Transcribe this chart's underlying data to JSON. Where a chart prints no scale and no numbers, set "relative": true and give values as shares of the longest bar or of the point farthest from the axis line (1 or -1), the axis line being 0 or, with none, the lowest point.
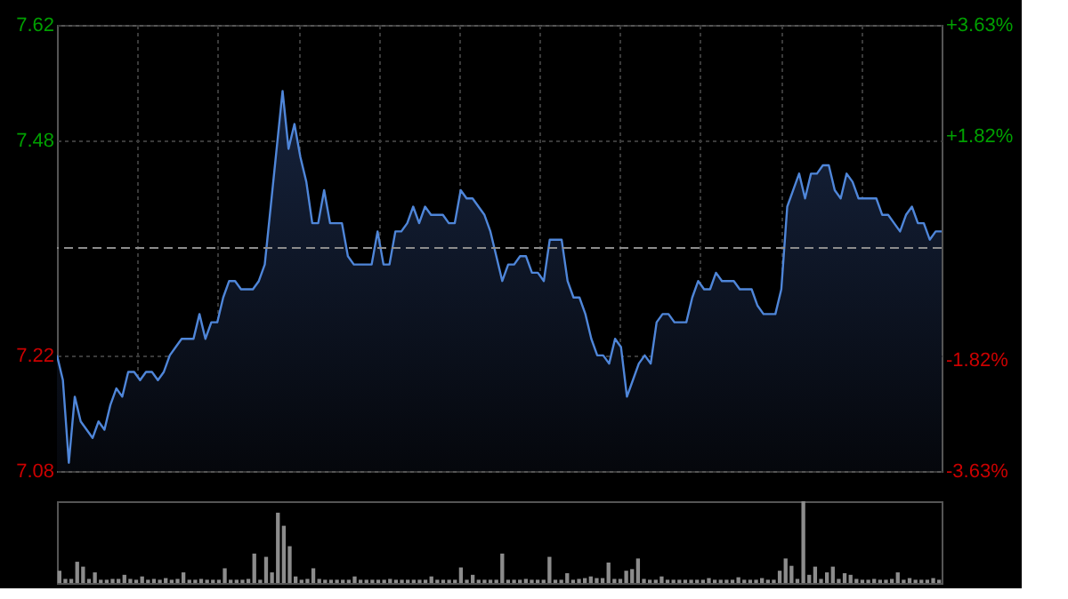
{
  "chart_data": [
    {
      "type": "area",
      "categories": [
        null,
        null,
        null,
        null,
        null,
        null,
        null,
        null,
        null,
        null,
        null,
        null,
        null,
        null,
        null,
        null,
        null,
        null,
        null,
        null,
        null,
        null,
        null,
        null,
        null,
        null,
        null,
        null,
        null,
        null,
        null,
        null,
        null,
        null,
        null,
        null,
        null,
        null,
        null,
        null,
        null,
        null,
        null,
        null,
        null,
        null,
        null,
        null,
        null,
        null,
        null,
        null,
        null,
        null,
        null,
        null,
        null,
        null,
        null,
        null,
        null,
        null,
        null,
        null,
        null,
        null,
        null,
        null,
        null,
        null,
        null,
        null,
        null,
        null,
        null,
        null,
        null,
        null,
        null,
        null,
        null,
        null,
        null,
        null,
        null,
        null,
        null,
        null,
        null,
        null,
        null,
        null,
        null,
        null,
        null,
        null,
        null,
        null,
        null,
        null,
        null,
        null,
        null,
        null,
        null,
        null,
        null,
        null,
        null,
        null,
        null,
        null,
        null,
        null,
        null,
        null,
        null,
        null,
        null,
        null,
        null,
        null,
        null,
        null,
        null,
        null,
        null,
        null,
        null,
        null,
        null,
        null,
        null,
        null,
        null,
        null,
        null,
        null,
        null,
        null,
        null,
        null,
        null,
        null,
        null,
        null,
        null,
        null,
        null,
        null
      ],
      "series": [
        {
          "color": "#4f86d9",
          "values": [
            7.22,
            7.19,
            7.09,
            7.17,
            7.14,
            7.13,
            7.12,
            7.14,
            7.13,
            7.16,
            7.18,
            7.17,
            7.2,
            7.2,
            7.19,
            7.2,
            7.2,
            7.19,
            7.2,
            7.22,
            7.23,
            7.24,
            7.24,
            7.24,
            7.27,
            7.24,
            7.26,
            7.26,
            7.29,
            7.31,
            7.31,
            7.3,
            7.3,
            7.3,
            7.31,
            7.33,
            7.4,
            7.47,
            7.54,
            7.47,
            7.5,
            7.46,
            7.43,
            7.38,
            7.38,
            7.42,
            7.38,
            7.38,
            7.38,
            7.34,
            7.33,
            7.33,
            7.33,
            7.33,
            7.37,
            7.33,
            7.33,
            7.37,
            7.37,
            7.38,
            7.4,
            7.38,
            7.4,
            7.39,
            7.39,
            7.39,
            7.38,
            7.38,
            7.42,
            7.41,
            7.41,
            7.4,
            7.39,
            7.37,
            7.34,
            7.31,
            7.33,
            7.33,
            7.34,
            7.34,
            7.32,
            7.32,
            7.31,
            7.36,
            7.36,
            7.36,
            7.31,
            7.29,
            7.29,
            7.27,
            7.24,
            7.22,
            7.22,
            7.21,
            7.24,
            7.23,
            7.17,
            7.19,
            7.21,
            7.22,
            7.21,
            7.26,
            7.27,
            7.27,
            7.26,
            7.26,
            7.26,
            7.29,
            7.31,
            7.3,
            7.3,
            7.32,
            7.31,
            7.31,
            7.31,
            7.3,
            7.3,
            7.3,
            7.28,
            7.27,
            7.27,
            7.27,
            7.3,
            7.4,
            7.42,
            7.44,
            7.41,
            7.44,
            7.44,
            7.45,
            7.45,
            7.42,
            7.41,
            7.44,
            7.43,
            7.41,
            7.41,
            7.41,
            7.41,
            7.39,
            7.39,
            7.38,
            7.37,
            7.39,
            7.4,
            7.38,
            7.38,
            7.36,
            7.37,
            7.37
          ]
        }
      ],
      "ylim": [
        7.08,
        7.62
      ],
      "yticks": [
        7.08,
        7.22,
        7.48,
        7.62
      ],
      "y2lim": [
        -3.63,
        3.63
      ],
      "y2ticks": [
        {
          "value": -3.63,
          "label": "-3.63%"
        },
        {
          "value": -1.82,
          "label": "-1.82%"
        },
        {
          "value": 1.82,
          "label": "+1.82%"
        },
        {
          "value": 3.63,
          "label": "+3.63%"
        }
      ],
      "ref_lines": [
        {
          "axis": "y",
          "value": 7.35,
          "color": "#8c8c8c",
          "line_style": "dashed"
        }
      ],
      "grid": true
    },
    {
      "type": "bar",
      "relative": true,
      "color": "#8c8c8c",
      "categories": [
        null,
        null,
        null,
        null,
        null,
        null,
        null,
        null,
        null,
        null,
        null,
        null,
        null,
        null,
        null,
        null,
        null,
        null,
        null,
        null,
        null,
        null,
        null,
        null,
        null,
        null,
        null,
        null,
        null,
        null,
        null,
        null,
        null,
        null,
        null,
        null,
        null,
        null,
        null,
        null,
        null,
        null,
        null,
        null,
        null,
        null,
        null,
        null,
        null,
        null,
        null,
        null,
        null,
        null,
        null,
        null,
        null,
        null,
        null,
        null,
        null,
        null,
        null,
        null,
        null,
        null,
        null,
        null,
        null,
        null,
        null,
        null,
        null,
        null,
        null,
        null,
        null,
        null,
        null,
        null,
        null,
        null,
        null,
        null,
        null,
        null,
        null,
        null,
        null,
        null,
        null,
        null,
        null,
        null,
        null,
        null,
        null,
        null,
        null,
        null,
        null,
        null,
        null,
        null,
        null,
        null,
        null,
        null,
        null,
        null,
        null,
        null,
        null,
        null,
        null,
        null,
        null,
        null,
        null,
        null,
        null,
        null,
        null,
        null,
        null,
        null,
        null,
        null,
        null,
        null,
        null,
        null,
        null,
        null,
        null,
        null,
        null,
        null,
        null,
        null,
        null,
        null,
        null,
        null,
        null,
        null,
        null,
        null,
        null,
        null
      ],
      "values": [
        0.15,
        0.05,
        0.05,
        0.26,
        0.2,
        0.05,
        0.13,
        0.04,
        0.04,
        0.05,
        0.05,
        0.1,
        0.05,
        0.04,
        0.08,
        0.04,
        0.05,
        0.04,
        0.06,
        0.04,
        0.05,
        0.13,
        0.04,
        0.04,
        0.05,
        0.04,
        0.04,
        0.04,
        0.18,
        0.04,
        0.04,
        0.04,
        0.05,
        0.36,
        0.04,
        0.32,
        0.13,
        0.86,
        0.7,
        0.45,
        0.08,
        0.04,
        0.05,
        0.18,
        0.05,
        0.04,
        0.04,
        0.04,
        0.04,
        0.04,
        0.08,
        0.04,
        0.04,
        0.04,
        0.04,
        0.04,
        0.05,
        0.04,
        0.04,
        0.04,
        0.04,
        0.04,
        0.04,
        0.08,
        0.04,
        0.04,
        0.04,
        0.04,
        0.19,
        0.04,
        0.1,
        0.04,
        0.04,
        0.04,
        0.04,
        0.36,
        0.04,
        0.04,
        0.04,
        0.05,
        0.04,
        0.04,
        0.04,
        0.32,
        0.04,
        0.04,
        0.12,
        0.04,
        0.05,
        0.06,
        0.08,
        0.06,
        0.06,
        0.25,
        0.05,
        0.05,
        0.15,
        0.17,
        0.3,
        0.05,
        0.04,
        0.04,
        0.08,
        0.04,
        0.04,
        0.04,
        0.04,
        0.04,
        0.04,
        0.04,
        0.06,
        0.04,
        0.04,
        0.04,
        0.04,
        0.07,
        0.04,
        0.04,
        0.04,
        0.06,
        0.04,
        0.04,
        0.15,
        0.3,
        0.21,
        0.05,
        1,
        0.1,
        0.2,
        0.05,
        0.13,
        0.2,
        0.05,
        0.12,
        0.1,
        0.05,
        0.04,
        0.04,
        0.05,
        0.04,
        0.04,
        0.05,
        0.13,
        0.04,
        0.06,
        0.04,
        0.04,
        0.04,
        0.06,
        0.04
      ]
    }
  ]
}
